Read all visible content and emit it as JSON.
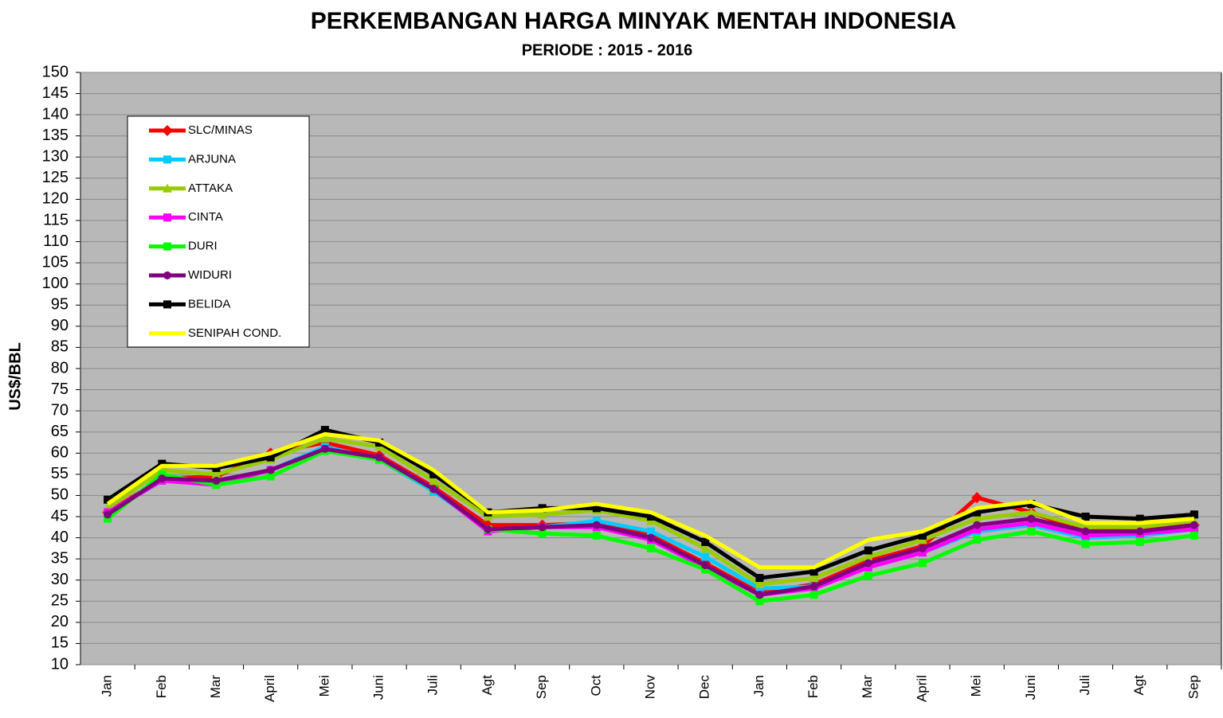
{
  "chart_data": {
    "type": "line",
    "title": "PERKEMBANGAN HARGA MINYAK MENTAH INDONESIA",
    "subtitle": "PERIODE : 2015 - 2016",
    "y_label": "US$/BBL",
    "categories": [
      "Jan",
      "Feb",
      "Mar",
      "April",
      "Mei",
      "Juni",
      "Juli",
      "Agt",
      "Sep",
      "Oct",
      "Nov",
      "Dec",
      "Jan",
      "Feb",
      "Mar",
      "April",
      "Mei",
      "Juni",
      "Juli",
      "Agt",
      "Sep"
    ],
    "ylim": [
      10,
      150
    ],
    "yticks": [
      10,
      15,
      20,
      25,
      30,
      35,
      40,
      45,
      50,
      55,
      60,
      65,
      70,
      75,
      80,
      85,
      90,
      95,
      100,
      105,
      110,
      115,
      120,
      125,
      130,
      135,
      140,
      145,
      150
    ],
    "grid": true,
    "legend": "upper left",
    "series": [
      {
        "name": "SLC/MINAS",
        "color": "#ff0000",
        "marker": "diamond",
        "values": [
          46,
          54,
          54.5,
          60,
          62.5,
          59.5,
          52,
          43,
          43,
          43.5,
          40.5,
          34,
          27,
          29,
          34.5,
          38,
          49.5,
          46,
          41.5,
          42,
          43
        ]
      },
      {
        "name": "ARJUNA",
        "color": "#00ccff",
        "marker": "square",
        "values": [
          45.5,
          54,
          53,
          56,
          61.5,
          58.5,
          51,
          42,
          42.5,
          44,
          41.5,
          35.5,
          28,
          28.5,
          33,
          36.5,
          41.5,
          43,
          40,
          40.5,
          42
        ]
      },
      {
        "name": "ATTAKA",
        "color": "#99cc00",
        "marker": "triangle",
        "values": [
          47,
          56,
          55,
          58.5,
          63.5,
          61.5,
          53.5,
          45,
          45.5,
          46.5,
          44,
          37.5,
          29,
          30.5,
          35.5,
          39.5,
          44.5,
          46,
          42.5,
          42.5,
          44
        ]
      },
      {
        "name": "CINTA",
        "color": "#ff00ff",
        "marker": "square",
        "values": [
          46,
          53.5,
          52.5,
          56,
          61,
          58.5,
          51.5,
          41.5,
          42.5,
          42.5,
          39.5,
          33,
          26.5,
          28,
          33,
          36.5,
          42,
          43.5,
          40.5,
          41,
          42
        ]
      },
      {
        "name": "DURI",
        "color": "#00ff00",
        "marker": "square",
        "values": [
          44.5,
          55,
          52.5,
          54.5,
          60.5,
          58.5,
          51.5,
          42,
          41,
          40.5,
          37.5,
          32.5,
          25,
          26.5,
          31,
          34,
          39.5,
          41.5,
          38.5,
          39,
          40.5
        ]
      },
      {
        "name": "WIDURI",
        "color": "#800080",
        "marker": "circle",
        "values": [
          45.5,
          54,
          53.5,
          56,
          61,
          59,
          51.5,
          42,
          42.5,
          43,
          40,
          33.5,
          26.5,
          28.5,
          34,
          37.5,
          43,
          44.5,
          41.5,
          41.5,
          43
        ]
      },
      {
        "name": "BELIDA",
        "color": "#000000",
        "marker": "square",
        "values": [
          49,
          57.5,
          56.5,
          59,
          65.5,
          62.5,
          55,
          46,
          47,
          47,
          45,
          39,
          30.5,
          32,
          37,
          40.5,
          46,
          48,
          45,
          44.5,
          45.5
        ]
      },
      {
        "name": "SENIPAH COND.",
        "color": "#ffff00",
        "marker": "none",
        "values": [
          48,
          57,
          57,
          60,
          64.5,
          63,
          56,
          46,
          46.5,
          48,
          46,
          40.5,
          33,
          33,
          39.5,
          41.5,
          47,
          48.5,
          43.5,
          43.5,
          44.5
        ]
      }
    ]
  }
}
